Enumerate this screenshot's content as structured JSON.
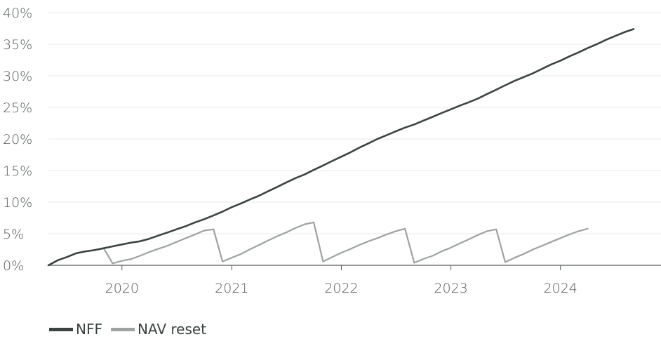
{
  "chart_data": {
    "type": "line",
    "title": "",
    "xlabel": "",
    "ylabel": "",
    "ylim": [
      0,
      40
    ],
    "xlim": [
      "2019-05-01",
      "2024-12-01"
    ],
    "y_ticks": [
      0,
      5,
      10,
      15,
      20,
      25,
      30,
      35,
      40
    ],
    "y_tick_labels": [
      "0%",
      "5%",
      "10%",
      "15%",
      "20%",
      "25%",
      "30%",
      "35%",
      "40%"
    ],
    "x_ticks": [
      "2020-01-01",
      "2021-01-01",
      "2022-01-01",
      "2023-01-01",
      "2024-01-01"
    ],
    "x_tick_labels": [
      "2020",
      "2021",
      "2022",
      "2023",
      "2024"
    ],
    "grid": "horizontal",
    "legend_position": "bottom-left",
    "colors": {
      "NFF": "#3b4442",
      "NAV reset": "#9da3a2",
      "grid": "#e8e8e8",
      "axis": "#555b5a"
    },
    "series": [
      {
        "name": "NFF",
        "points": [
          [
            "2019-05-01",
            0.0
          ],
          [
            "2019-06-01",
            0.8
          ],
          [
            "2019-07-01",
            1.3
          ],
          [
            "2019-08-01",
            1.9
          ],
          [
            "2019-09-01",
            2.2
          ],
          [
            "2019-10-01",
            2.4
          ],
          [
            "2019-11-01",
            2.7
          ],
          [
            "2019-12-01",
            3.0
          ],
          [
            "2020-01-01",
            3.3
          ],
          [
            "2020-02-01",
            3.6
          ],
          [
            "2020-03-01",
            3.8
          ],
          [
            "2020-04-01",
            4.2
          ],
          [
            "2020-05-01",
            4.7
          ],
          [
            "2020-06-01",
            5.2
          ],
          [
            "2020-07-01",
            5.7
          ],
          [
            "2020-08-01",
            6.2
          ],
          [
            "2020-09-01",
            6.8
          ],
          [
            "2020-10-01",
            7.3
          ],
          [
            "2020-11-01",
            7.9
          ],
          [
            "2020-12-01",
            8.5
          ],
          [
            "2021-01-01",
            9.2
          ],
          [
            "2021-02-01",
            9.8
          ],
          [
            "2021-03-01",
            10.4
          ],
          [
            "2021-04-01",
            11.0
          ],
          [
            "2021-05-01",
            11.7
          ],
          [
            "2021-06-01",
            12.4
          ],
          [
            "2021-07-01",
            13.1
          ],
          [
            "2021-08-01",
            13.8
          ],
          [
            "2021-09-01",
            14.4
          ],
          [
            "2021-10-01",
            15.1
          ],
          [
            "2021-11-01",
            15.8
          ],
          [
            "2021-12-01",
            16.5
          ],
          [
            "2022-01-01",
            17.2
          ],
          [
            "2022-02-01",
            17.9
          ],
          [
            "2022-03-01",
            18.6
          ],
          [
            "2022-04-01",
            19.3
          ],
          [
            "2022-05-01",
            20.0
          ],
          [
            "2022-06-01",
            20.6
          ],
          [
            "2022-07-01",
            21.2
          ],
          [
            "2022-08-01",
            21.8
          ],
          [
            "2022-09-01",
            22.3
          ],
          [
            "2022-10-01",
            22.9
          ],
          [
            "2022-11-01",
            23.5
          ],
          [
            "2022-12-01",
            24.1
          ],
          [
            "2023-01-01",
            24.7
          ],
          [
            "2023-02-01",
            25.3
          ],
          [
            "2023-03-01",
            25.8
          ],
          [
            "2023-04-01",
            26.4
          ],
          [
            "2023-05-01",
            27.1
          ],
          [
            "2023-06-01",
            27.8
          ],
          [
            "2023-07-01",
            28.5
          ],
          [
            "2023-08-01",
            29.2
          ],
          [
            "2023-09-01",
            29.8
          ],
          [
            "2023-10-01",
            30.4
          ],
          [
            "2023-11-01",
            31.1
          ],
          [
            "2023-12-01",
            31.8
          ],
          [
            "2024-01-01",
            32.4
          ],
          [
            "2024-02-01",
            33.1
          ],
          [
            "2024-03-01",
            33.7
          ],
          [
            "2024-04-01",
            34.4
          ],
          [
            "2024-05-01",
            35.0
          ],
          [
            "2024-06-01",
            35.7
          ],
          [
            "2024-07-01",
            36.3
          ],
          [
            "2024-08-01",
            36.9
          ],
          [
            "2024-09-01",
            37.4
          ]
        ]
      },
      {
        "name": "NAV reset",
        "points": [
          [
            "2019-05-01",
            0.0
          ],
          [
            "2019-06-01",
            0.8
          ],
          [
            "2019-07-01",
            1.3
          ],
          [
            "2019-08-01",
            1.9
          ],
          [
            "2019-09-01",
            2.2
          ],
          [
            "2019-10-01",
            2.4
          ],
          [
            "2019-11-01",
            2.7
          ],
          [
            "2019-12-01",
            0.3
          ],
          [
            "2020-01-01",
            0.7
          ],
          [
            "2020-02-01",
            1.0
          ],
          [
            "2020-03-01",
            1.5
          ],
          [
            "2020-04-01",
            2.1
          ],
          [
            "2020-05-01",
            2.6
          ],
          [
            "2020-06-01",
            3.1
          ],
          [
            "2020-07-01",
            3.7
          ],
          [
            "2020-08-01",
            4.3
          ],
          [
            "2020-09-01",
            4.9
          ],
          [
            "2020-10-01",
            5.5
          ],
          [
            "2020-11-01",
            5.7
          ],
          [
            "2020-12-01",
            0.6
          ],
          [
            "2021-01-01",
            1.2
          ],
          [
            "2021-02-01",
            1.8
          ],
          [
            "2021-03-01",
            2.5
          ],
          [
            "2021-04-01",
            3.2
          ],
          [
            "2021-05-01",
            3.9
          ],
          [
            "2021-06-01",
            4.6
          ],
          [
            "2021-07-01",
            5.2
          ],
          [
            "2021-08-01",
            5.9
          ],
          [
            "2021-09-01",
            6.5
          ],
          [
            "2021-10-01",
            6.8
          ],
          [
            "2021-11-01",
            0.6
          ],
          [
            "2021-12-01",
            1.3
          ],
          [
            "2022-01-01",
            2.0
          ],
          [
            "2022-02-01",
            2.6
          ],
          [
            "2022-03-01",
            3.2
          ],
          [
            "2022-04-01",
            3.8
          ],
          [
            "2022-05-01",
            4.3
          ],
          [
            "2022-06-01",
            4.9
          ],
          [
            "2022-07-01",
            5.4
          ],
          [
            "2022-08-01",
            5.8
          ],
          [
            "2022-09-01",
            0.4
          ],
          [
            "2022-10-01",
            1.0
          ],
          [
            "2022-11-01",
            1.5
          ],
          [
            "2022-12-01",
            2.2
          ],
          [
            "2023-01-01",
            2.8
          ],
          [
            "2023-02-01",
            3.5
          ],
          [
            "2023-03-01",
            4.1
          ],
          [
            "2023-04-01",
            4.8
          ],
          [
            "2023-05-01",
            5.4
          ],
          [
            "2023-06-01",
            5.7
          ],
          [
            "2023-07-01",
            0.5
          ],
          [
            "2023-08-01",
            1.2
          ],
          [
            "2023-09-01",
            1.8
          ],
          [
            "2023-10-01",
            2.5
          ],
          [
            "2023-11-01",
            3.1
          ],
          [
            "2023-12-01",
            3.7
          ],
          [
            "2024-01-01",
            4.3
          ],
          [
            "2024-02-01",
            4.9
          ],
          [
            "2024-03-01",
            5.4
          ],
          [
            "2024-04-01",
            5.8
          ]
        ]
      }
    ]
  },
  "legend": {
    "items": [
      {
        "label": "NFF",
        "color": "#3b4442"
      },
      {
        "label": "NAV reset",
        "color": "#9da3a2"
      }
    ]
  }
}
